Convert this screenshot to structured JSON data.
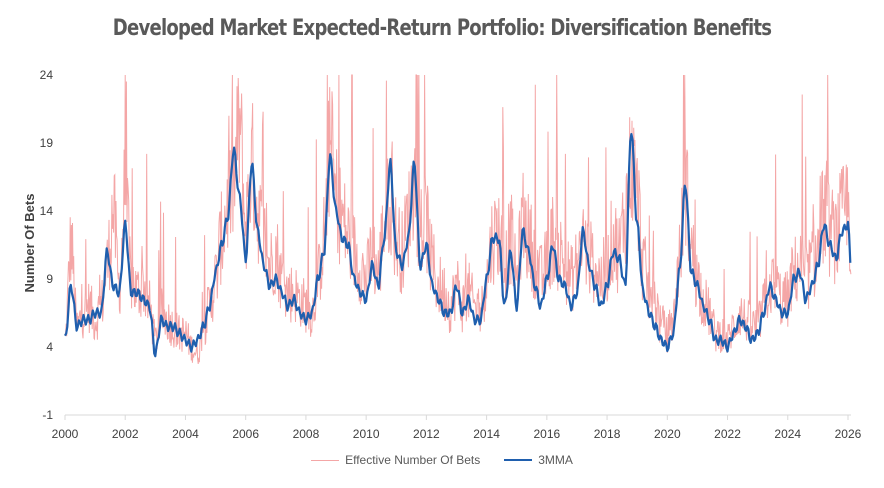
{
  "chart_data": {
    "type": "line",
    "title": "Developed Market Expected-Return Portfolio: Diversification Benefits",
    "xlabel": "",
    "ylabel": "Number Of Bets",
    "xlim": [
      2000,
      2026.1
    ],
    "ylim": [
      -1,
      24
    ],
    "yticks": [
      -1,
      4,
      9,
      14,
      19,
      24
    ],
    "xticks": [
      2000,
      2002,
      2004,
      2006,
      2008,
      2010,
      2012,
      2014,
      2016,
      2018,
      2020,
      2022,
      2024,
      2026
    ],
    "colors": {
      "raw": "#F4A6A6",
      "ma": "#1F5FAE",
      "axis": "#D9D9D9",
      "title": "#595959"
    },
    "series": [
      {
        "name": "Effective Number Of Bets",
        "noise": 2.6,
        "x": [
          2000.0,
          2000.2,
          2000.4,
          2000.6,
          2000.8,
          2001.0,
          2001.2,
          2001.4,
          2001.6,
          2001.8,
          2002.0,
          2002.2,
          2002.4,
          2002.6,
          2002.8,
          2003.0,
          2003.2,
          2003.4,
          2003.6,
          2003.8,
          2004.0,
          2004.2,
          2004.4,
          2004.6,
          2004.8,
          2005.0,
          2005.2,
          2005.4,
          2005.6,
          2005.8,
          2006.0,
          2006.2,
          2006.4,
          2006.6,
          2006.8,
          2007.0,
          2007.2,
          2007.4,
          2007.6,
          2007.8,
          2008.0,
          2008.2,
          2008.4,
          2008.6,
          2008.8,
          2009.0,
          2009.2,
          2009.4,
          2009.6,
          2009.8,
          2010.0,
          2010.2,
          2010.4,
          2010.6,
          2010.8,
          2011.0,
          2011.2,
          2011.4,
          2011.6,
          2011.8,
          2012.0,
          2012.2,
          2012.4,
          2012.6,
          2012.8,
          2013.0,
          2013.2,
          2013.4,
          2013.6,
          2013.8,
          2014.0,
          2014.2,
          2014.4,
          2014.6,
          2014.8,
          2015.0,
          2015.2,
          2015.4,
          2015.6,
          2015.8,
          2016.0,
          2016.2,
          2016.4,
          2016.6,
          2016.8,
          2017.0,
          2017.2,
          2017.4,
          2017.6,
          2017.8,
          2018.0,
          2018.2,
          2018.4,
          2018.6,
          2018.8,
          2019.0,
          2019.2,
          2019.4,
          2019.6,
          2019.8,
          2020.0,
          2020.2,
          2020.4,
          2020.6,
          2020.8,
          2021.0,
          2021.2,
          2021.4,
          2021.6,
          2021.8,
          2022.0,
          2022.2,
          2022.4,
          2022.6,
          2022.8,
          2023.0,
          2023.2,
          2023.4,
          2023.6,
          2023.8,
          2024.0,
          2024.2,
          2024.4,
          2024.6,
          2024.8,
          2025.0,
          2025.2,
          2025.4,
          2025.6,
          2025.8,
          2026.0,
          2026.1
        ],
        "values": [
          4.5,
          11.5,
          5.5,
          6.5,
          7.0,
          6.0,
          7.0,
          10.0,
          14.0,
          8.5,
          15.5,
          9.0,
          8.0,
          8.5,
          7.0,
          4.5,
          6.5,
          6.0,
          5.5,
          5.0,
          5.0,
          4.0,
          3.5,
          5.5,
          7.0,
          9.0,
          12.0,
          14.5,
          16.0,
          20.0,
          13.0,
          17.5,
          14.0,
          12.0,
          10.0,
          11.0,
          9.0,
          8.0,
          8.0,
          7.5,
          7.0,
          6.5,
          9.0,
          12.0,
          18.5,
          15.0,
          13.5,
          12.0,
          11.0,
          10.0,
          9.0,
          11.0,
          9.5,
          13.0,
          15.0,
          12.0,
          11.0,
          13.5,
          16.5,
          12.5,
          13.0,
          10.0,
          8.5,
          8.0,
          7.0,
          8.5,
          7.0,
          8.0,
          7.0,
          6.5,
          9.0,
          12.0,
          12.5,
          10.0,
          12.0,
          9.0,
          13.5,
          12.0,
          10.5,
          9.0,
          10.0,
          12.0,
          11.0,
          10.0,
          9.0,
          10.0,
          12.0,
          10.5,
          10.0,
          9.0,
          10.0,
          12.0,
          11.0,
          14.0,
          17.5,
          15.0,
          10.0,
          8.0,
          7.5,
          5.5,
          5.0,
          6.0,
          10.5,
          16.0,
          11.0,
          9.0,
          7.5,
          6.5,
          5.0,
          5.0,
          4.5,
          5.5,
          6.5,
          6.0,
          5.5,
          5.5,
          7.0,
          8.5,
          8.5,
          7.5,
          7.5,
          9.5,
          10.0,
          9.0,
          10.0,
          11.0,
          14.0,
          12.5,
          12.0,
          13.5,
          14.5,
          12.0
        ]
      },
      {
        "name": "3MMA",
        "x": [
          2000.0,
          2000.2,
          2000.4,
          2000.6,
          2000.8,
          2001.0,
          2001.2,
          2001.4,
          2001.6,
          2001.8,
          2002.0,
          2002.2,
          2002.4,
          2002.6,
          2002.8,
          2003.0,
          2003.2,
          2003.4,
          2003.6,
          2003.8,
          2004.0,
          2004.2,
          2004.4,
          2004.6,
          2004.8,
          2005.0,
          2005.2,
          2005.4,
          2005.6,
          2005.8,
          2006.0,
          2006.2,
          2006.4,
          2006.6,
          2006.8,
          2007.0,
          2007.2,
          2007.4,
          2007.6,
          2007.8,
          2008.0,
          2008.2,
          2008.4,
          2008.6,
          2008.8,
          2009.0,
          2009.2,
          2009.4,
          2009.6,
          2009.8,
          2010.0,
          2010.2,
          2010.4,
          2010.6,
          2010.8,
          2011.0,
          2011.2,
          2011.4,
          2011.6,
          2011.8,
          2012.0,
          2012.2,
          2012.4,
          2012.6,
          2012.8,
          2013.0,
          2013.2,
          2013.4,
          2013.6,
          2013.8,
          2014.0,
          2014.2,
          2014.4,
          2014.6,
          2014.8,
          2015.0,
          2015.2,
          2015.4,
          2015.6,
          2015.8,
          2016.0,
          2016.2,
          2016.4,
          2016.6,
          2016.8,
          2017.0,
          2017.2,
          2017.4,
          2017.6,
          2017.8,
          2018.0,
          2018.2,
          2018.4,
          2018.6,
          2018.8,
          2019.0,
          2019.2,
          2019.4,
          2019.6,
          2019.8,
          2020.0,
          2020.2,
          2020.4,
          2020.6,
          2020.8,
          2021.0,
          2021.2,
          2021.4,
          2021.6,
          2021.8,
          2022.0,
          2022.2,
          2022.4,
          2022.6,
          2022.8,
          2023.0,
          2023.2,
          2023.4,
          2023.6,
          2023.8,
          2024.0,
          2024.2,
          2024.4,
          2024.6,
          2024.8,
          2025.0,
          2025.2,
          2025.4,
          2025.6,
          2025.8,
          2026.0,
          2026.1
        ],
        "values": [
          4.5,
          8.5,
          5.5,
          6.0,
          6.0,
          6.5,
          6.5,
          11.0,
          8.5,
          8.0,
          13.0,
          8.0,
          8.0,
          7.5,
          7.0,
          3.5,
          6.0,
          5.5,
          5.5,
          5.0,
          4.5,
          4.0,
          4.5,
          5.5,
          7.0,
          9.5,
          11.5,
          13.5,
          18.5,
          15.0,
          10.5,
          17.5,
          12.5,
          10.0,
          8.5,
          9.0,
          8.0,
          7.0,
          7.5,
          6.5,
          6.0,
          6.5,
          9.0,
          11.0,
          18.0,
          14.0,
          12.0,
          11.5,
          9.0,
          8.0,
          7.5,
          10.0,
          8.5,
          12.0,
          17.5,
          11.0,
          10.0,
          12.0,
          17.5,
          10.0,
          11.5,
          8.5,
          7.5,
          6.5,
          6.5,
          8.5,
          6.5,
          7.5,
          6.0,
          6.0,
          9.0,
          12.0,
          12.0,
          7.0,
          11.0,
          7.0,
          12.5,
          11.0,
          8.5,
          7.0,
          9.0,
          11.5,
          9.0,
          8.5,
          7.0,
          8.0,
          12.5,
          10.0,
          8.5,
          7.0,
          8.5,
          11.0,
          10.5,
          8.5,
          20.0,
          13.0,
          8.0,
          6.5,
          5.5,
          4.5,
          4.0,
          5.0,
          9.5,
          16.0,
          9.5,
          8.5,
          7.0,
          6.0,
          4.5,
          4.5,
          4.0,
          5.0,
          6.0,
          5.5,
          4.5,
          5.0,
          6.5,
          8.5,
          7.5,
          6.5,
          6.5,
          9.0,
          9.5,
          7.5,
          8.5,
          10.0,
          13.0,
          11.5,
          10.5,
          12.5,
          13.0,
          10.0
        ]
      }
    ]
  }
}
